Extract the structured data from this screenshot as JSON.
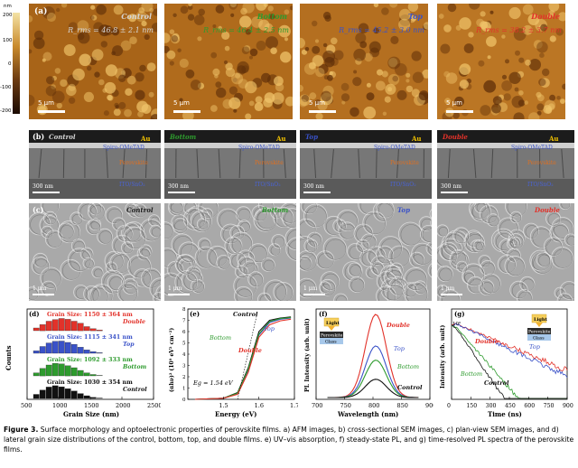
{
  "afm": {
    "panel_letter": "(a)",
    "colorbar_unit": "nm",
    "colorbar_ticks": [
      "200",
      "100",
      "0",
      "-100",
      "-200"
    ],
    "scale_label": "5 μm",
    "films": [
      {
        "name": "Control",
        "rms": "R_rms = 46.8 ± 2.1 nm",
        "color": "#d6d6d6"
      },
      {
        "name": "Bottom",
        "rms": "R_rms = 46.4 ± 2.5 nm",
        "color": "#2e9b2e"
      },
      {
        "name": "Top",
        "rms": "R_rms = 45.2 ± 3.0 nm",
        "color": "#3a52c8"
      },
      {
        "name": "Double",
        "rms": "R_rms = 38.2 ± 3.7 nm",
        "color": "#e2322a"
      }
    ]
  },
  "sem_cross": {
    "panel_letter": "(b)",
    "labels": {
      "au": "Au",
      "spiro": "Spiro-OMeTAD",
      "perovskite": "Perovskite",
      "ito": "ITO/SnO₂",
      "scale": "300 nm"
    },
    "films": [
      "Control",
      "Bottom",
      "Top",
      "Double"
    ]
  },
  "sem_plan": {
    "panel_letter": "(c)",
    "scale": "1 μm",
    "films": [
      "Control",
      "Bottom",
      "Top",
      "Double"
    ]
  },
  "grain": {
    "panel_letter": "(d)",
    "ylabel": "Counts",
    "xlabel": "Grain Size (nm)",
    "xticks": [
      "500",
      "1000",
      "1500",
      "2000",
      "2500"
    ],
    "series": [
      {
        "name": "Double",
        "label": "Grain Size: 1150 ± 364 nm",
        "color": "#e2322a",
        "values": [
          20,
          45,
          70,
          82,
          90,
          84,
          70,
          55,
          30,
          15,
          5
        ]
      },
      {
        "name": "Top",
        "label": "Grain Size: 1115 ± 341 nm",
        "color": "#3a52c8",
        "values": [
          18,
          50,
          76,
          88,
          90,
          80,
          66,
          45,
          25,
          12,
          4
        ]
      },
      {
        "name": "Bottom",
        "label": "Grain Size: 1092 ± 333 nm",
        "color": "#2e9b2e",
        "values": [
          22,
          55,
          80,
          92,
          88,
          75,
          60,
          40,
          22,
          10,
          3
        ]
      },
      {
        "name": "Control",
        "label": "Grain Size: 1030 ± 354 nm",
        "color": "#111111",
        "values": [
          30,
          62,
          84,
          94,
          86,
          72,
          55,
          36,
          20,
          8,
          3
        ]
      }
    ]
  },
  "chart_data": [
    {
      "type": "line",
      "title": "(e)",
      "xlabel": "Energy (eV)",
      "ylabel": "(αhν)² (10⁹ eV² cm⁻²)",
      "xlim": [
        1.4,
        1.7
      ],
      "ylim": [
        0,
        8
      ],
      "xticks": [
        "1.5",
        "1.6",
        "1.7"
      ],
      "yticks": [
        "0",
        "1",
        "2",
        "3",
        "4",
        "5",
        "6",
        "7",
        "8"
      ],
      "annotation": "Eg = 1.54 eV",
      "series": [
        {
          "name": "Control",
          "color": "#111111",
          "x": [
            1.42,
            1.5,
            1.54,
            1.57,
            1.6,
            1.63,
            1.66,
            1.69
          ],
          "y": [
            0,
            0.1,
            0.6,
            2.8,
            6.0,
            7.0,
            7.2,
            7.3
          ]
        },
        {
          "name": "Top",
          "color": "#3a52c8",
          "x": [
            1.42,
            1.5,
            1.54,
            1.57,
            1.6,
            1.63,
            1.66,
            1.69
          ],
          "y": [
            0,
            0.1,
            0.5,
            2.6,
            5.7,
            6.8,
            7.1,
            7.2
          ]
        },
        {
          "name": "Bottom",
          "color": "#2e9b2e",
          "x": [
            1.42,
            1.5,
            1.54,
            1.57,
            1.6,
            1.63,
            1.66,
            1.69
          ],
          "y": [
            0,
            0.1,
            0.55,
            2.7,
            5.8,
            6.9,
            7.15,
            7.25
          ]
        },
        {
          "name": "Double",
          "color": "#e2322a",
          "x": [
            1.42,
            1.5,
            1.54,
            1.57,
            1.6,
            1.63,
            1.66,
            1.69
          ],
          "y": [
            0,
            0.1,
            0.45,
            2.4,
            5.5,
            6.6,
            6.95,
            7.1
          ]
        }
      ]
    },
    {
      "type": "line",
      "title": "(f)",
      "xlabel": "Wavelength (nm)",
      "ylabel": "PL Intensity (arb. unit)",
      "xlim": [
        700,
        900
      ],
      "xticks": [
        "700",
        "750",
        "800",
        "850",
        "900"
      ],
      "inset": {
        "light": "Light",
        "top": "Perovskite",
        "bottom": "Glass"
      },
      "series": [
        {
          "name": "Double",
          "color": "#e2322a",
          "peak": 1.0
        },
        {
          "name": "Top",
          "color": "#3a52c8",
          "peak": 0.62
        },
        {
          "name": "Bottom",
          "color": "#2e9b2e",
          "peak": 0.45
        },
        {
          "name": "Control",
          "color": "#111111",
          "peak": 0.22
        }
      ]
    },
    {
      "type": "line",
      "title": "(g)",
      "xlabel": "Time (ns)",
      "ylabel": "Intensity (arb. unit)",
      "xlim": [
        0,
        900
      ],
      "xticks": [
        "0",
        "150",
        "300",
        "450",
        "600",
        "750",
        "900"
      ],
      "ytick": "10⁰",
      "inset": {
        "light": "Light",
        "top": "Perovskite",
        "bottom": "Glass"
      },
      "series": [
        {
          "name": "Double",
          "color": "#e2322a",
          "tau": 900
        },
        {
          "name": "Top",
          "color": "#3a52c8",
          "tau": 800
        },
        {
          "name": "Bottom",
          "color": "#2e9b2e",
          "tau": 330
        },
        {
          "name": "Control",
          "color": "#111111",
          "tau": 260
        }
      ]
    }
  ],
  "caption": {
    "label": "Figure 3.",
    "text": " Surface morphology and optoelectronic properties of perovskite films. a) AFM images, b) cross-sectional SEM images, c) plan-view SEM images, and d) lateral grain size distributions of the control, bottom, top, and double films. e) UV–vis absorption, f) steady-state PL, and g) time-resolved PL spectra of the perovskite films."
  }
}
